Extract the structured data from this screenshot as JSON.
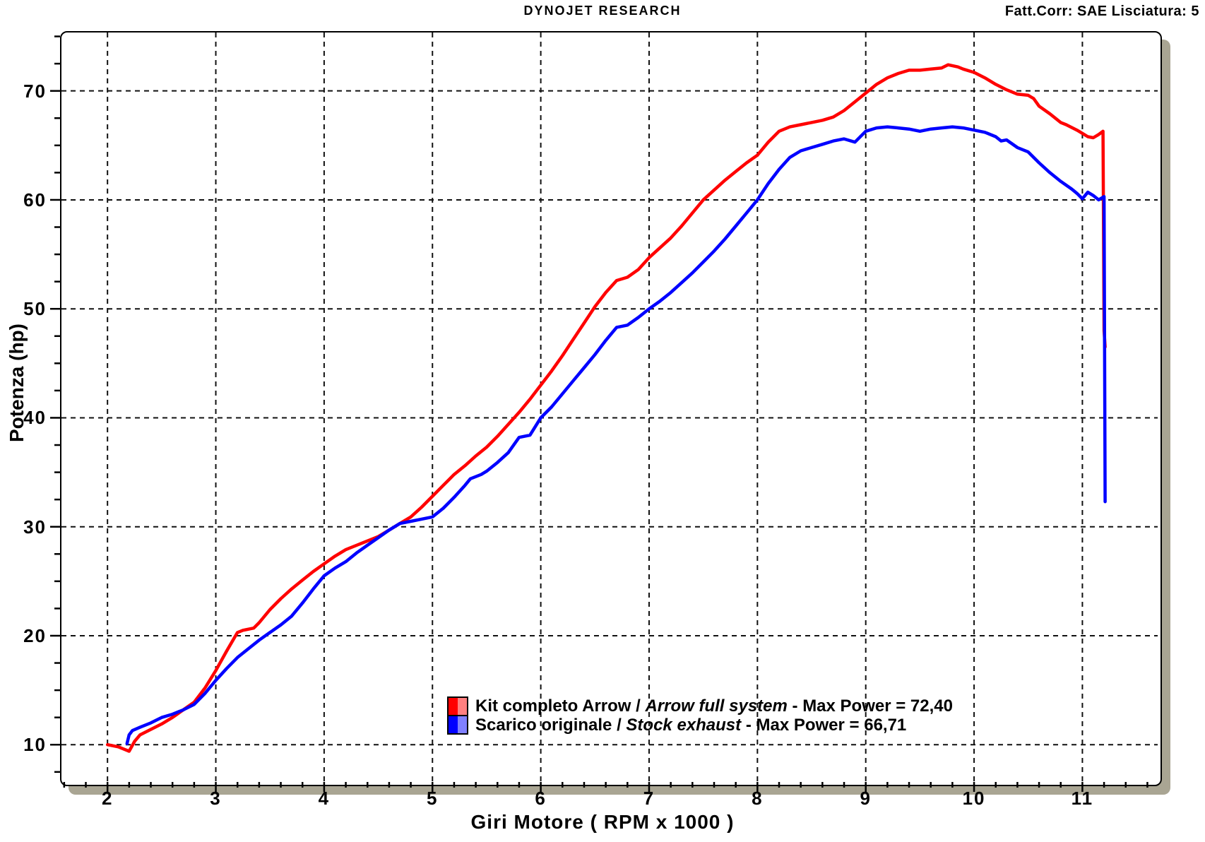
{
  "header": {
    "title": "DYNOJET RESEARCH",
    "correction": "Fatt.Corr: SAE  Lisciatura: 5"
  },
  "colors": {
    "arrow_curve": "#ff0000",
    "arrow_swatch_light": "#ff8080",
    "stock_curve": "#0000ff",
    "stock_swatch_light": "#8080ff",
    "grid": "#111111",
    "axis_shadow": "#a9a593",
    "text": "#000000",
    "background": "#ffffff"
  },
  "chart_data": {
    "type": "line",
    "title": "DYNOJET RESEARCH",
    "xlabel": "Giri Motore ( RPM x 1000 )",
    "ylabel": "Potenza (hp)",
    "grid": "dashed",
    "legend_position": "inside-bottom-center",
    "x_axis": {
      "min": 1.575,
      "max": 11.695,
      "major_ticks": [
        2,
        3,
        4,
        5,
        6,
        7,
        8,
        9,
        10,
        11
      ],
      "minor_step": 0.2
    },
    "y_axis": {
      "min": 6.58,
      "max": 75.36,
      "major_ticks": [
        10,
        20,
        30,
        40,
        50,
        60,
        70
      ],
      "minor_step": 2.5
    },
    "series": [
      {
        "name_it": "Kit completo Arrow",
        "name_en": "Arrow full system",
        "max_power": 72.4,
        "color": "#ff0000",
        "legend": {
          "name_it": "Kit completo Arrow",
          "sep": " / ",
          "name_en": "Arrow full system",
          "max": " - Max Power = 72,40"
        },
        "points": [
          [
            2.0,
            10.0
          ],
          [
            2.1,
            9.8
          ],
          [
            2.15,
            9.6
          ],
          [
            2.2,
            9.4
          ],
          [
            2.25,
            10.3
          ],
          [
            2.3,
            10.9
          ],
          [
            2.4,
            11.4
          ],
          [
            2.5,
            11.9
          ],
          [
            2.6,
            12.5
          ],
          [
            2.7,
            13.2
          ],
          [
            2.8,
            13.9
          ],
          [
            2.9,
            15.2
          ],
          [
            3.0,
            16.8
          ],
          [
            3.1,
            18.6
          ],
          [
            3.2,
            20.3
          ],
          [
            3.25,
            20.5
          ],
          [
            3.35,
            20.7
          ],
          [
            3.4,
            21.2
          ],
          [
            3.5,
            22.4
          ],
          [
            3.6,
            23.4
          ],
          [
            3.7,
            24.3
          ],
          [
            3.8,
            25.1
          ],
          [
            3.9,
            25.9
          ],
          [
            4.0,
            26.6
          ],
          [
            4.1,
            27.3
          ],
          [
            4.2,
            27.9
          ],
          [
            4.3,
            28.3
          ],
          [
            4.45,
            28.9
          ],
          [
            4.5,
            29.1
          ],
          [
            4.6,
            29.7
          ],
          [
            4.7,
            30.3
          ],
          [
            4.8,
            30.9
          ],
          [
            4.9,
            31.8
          ],
          [
            5.0,
            32.8
          ],
          [
            5.1,
            33.8
          ],
          [
            5.2,
            34.8
          ],
          [
            5.3,
            35.6
          ],
          [
            5.4,
            36.5
          ],
          [
            5.5,
            37.3
          ],
          [
            5.6,
            38.3
          ],
          [
            5.7,
            39.4
          ],
          [
            5.8,
            40.5
          ],
          [
            5.9,
            41.7
          ],
          [
            6.0,
            43.0
          ],
          [
            6.1,
            44.3
          ],
          [
            6.2,
            45.7
          ],
          [
            6.3,
            47.2
          ],
          [
            6.4,
            48.7
          ],
          [
            6.5,
            50.2
          ],
          [
            6.6,
            51.5
          ],
          [
            6.7,
            52.6
          ],
          [
            6.8,
            52.9
          ],
          [
            6.9,
            53.6
          ],
          [
            7.0,
            54.7
          ],
          [
            7.1,
            55.6
          ],
          [
            7.2,
            56.5
          ],
          [
            7.3,
            57.6
          ],
          [
            7.4,
            58.8
          ],
          [
            7.5,
            60.0
          ],
          [
            7.6,
            60.9
          ],
          [
            7.7,
            61.8
          ],
          [
            7.8,
            62.6
          ],
          [
            7.9,
            63.4
          ],
          [
            8.0,
            64.1
          ],
          [
            8.1,
            65.3
          ],
          [
            8.2,
            66.3
          ],
          [
            8.3,
            66.7
          ],
          [
            8.4,
            66.9
          ],
          [
            8.5,
            67.1
          ],
          [
            8.6,
            67.3
          ],
          [
            8.7,
            67.6
          ],
          [
            8.8,
            68.2
          ],
          [
            8.9,
            69.0
          ],
          [
            9.0,
            69.8
          ],
          [
            9.1,
            70.6
          ],
          [
            9.2,
            71.2
          ],
          [
            9.3,
            71.6
          ],
          [
            9.4,
            71.9
          ],
          [
            9.5,
            71.9
          ],
          [
            9.6,
            72.0
          ],
          [
            9.7,
            72.1
          ],
          [
            9.76,
            72.4
          ],
          [
            9.85,
            72.2
          ],
          [
            9.9,
            72.0
          ],
          [
            10.0,
            71.7
          ],
          [
            10.1,
            71.2
          ],
          [
            10.2,
            70.6
          ],
          [
            10.3,
            70.1
          ],
          [
            10.4,
            69.7
          ],
          [
            10.5,
            69.6
          ],
          [
            10.55,
            69.3
          ],
          [
            10.6,
            68.6
          ],
          [
            10.7,
            67.9
          ],
          [
            10.8,
            67.1
          ],
          [
            10.85,
            66.9
          ],
          [
            10.95,
            66.4
          ],
          [
            11.0,
            66.1
          ],
          [
            11.05,
            65.8
          ],
          [
            11.1,
            65.7
          ],
          [
            11.15,
            66.0
          ],
          [
            11.19,
            66.3
          ],
          [
            11.2,
            48.0
          ],
          [
            11.21,
            46.5
          ]
        ]
      },
      {
        "name_it": "Scarico originale",
        "name_en": "Stock exhaust",
        "max_power": 66.71,
        "color": "#0000ff",
        "legend": {
          "name_it": "Scarico originale",
          "sep": " / ",
          "name_en": "Stock exhaust",
          "max": " - Max Power = 66,71"
        },
        "points": [
          [
            2.18,
            10.1
          ],
          [
            2.2,
            10.9
          ],
          [
            2.23,
            11.3
          ],
          [
            2.3,
            11.6
          ],
          [
            2.4,
            12.0
          ],
          [
            2.5,
            12.5
          ],
          [
            2.6,
            12.8
          ],
          [
            2.7,
            13.2
          ],
          [
            2.8,
            13.7
          ],
          [
            2.9,
            14.7
          ],
          [
            3.0,
            15.9
          ],
          [
            3.1,
            17.0
          ],
          [
            3.2,
            18.0
          ],
          [
            3.3,
            18.8
          ],
          [
            3.4,
            19.6
          ],
          [
            3.5,
            20.3
          ],
          [
            3.6,
            21.0
          ],
          [
            3.7,
            21.8
          ],
          [
            3.8,
            23.0
          ],
          [
            3.9,
            24.3
          ],
          [
            4.0,
            25.5
          ],
          [
            4.1,
            26.2
          ],
          [
            4.2,
            26.8
          ],
          [
            4.3,
            27.6
          ],
          [
            4.4,
            28.3
          ],
          [
            4.5,
            29.0
          ],
          [
            4.6,
            29.7
          ],
          [
            4.7,
            30.3
          ],
          [
            4.8,
            30.5
          ],
          [
            4.9,
            30.7
          ],
          [
            5.0,
            30.9
          ],
          [
            5.1,
            31.7
          ],
          [
            5.2,
            32.7
          ],
          [
            5.3,
            33.8
          ],
          [
            5.35,
            34.4
          ],
          [
            5.45,
            34.8
          ],
          [
            5.5,
            35.1
          ],
          [
            5.6,
            35.9
          ],
          [
            5.7,
            36.8
          ],
          [
            5.8,
            38.2
          ],
          [
            5.9,
            38.4
          ],
          [
            6.0,
            40.0
          ],
          [
            6.1,
            41.0
          ],
          [
            6.2,
            42.2
          ],
          [
            6.3,
            43.4
          ],
          [
            6.4,
            44.6
          ],
          [
            6.5,
            45.8
          ],
          [
            6.6,
            47.1
          ],
          [
            6.7,
            48.3
          ],
          [
            6.8,
            48.5
          ],
          [
            6.9,
            49.2
          ],
          [
            7.0,
            50.0
          ],
          [
            7.1,
            50.7
          ],
          [
            7.2,
            51.5
          ],
          [
            7.3,
            52.4
          ],
          [
            7.4,
            53.3
          ],
          [
            7.5,
            54.3
          ],
          [
            7.6,
            55.3
          ],
          [
            7.7,
            56.4
          ],
          [
            7.8,
            57.6
          ],
          [
            7.9,
            58.8
          ],
          [
            8.0,
            60.0
          ],
          [
            8.1,
            61.5
          ],
          [
            8.2,
            62.8
          ],
          [
            8.3,
            63.9
          ],
          [
            8.4,
            64.5
          ],
          [
            8.5,
            64.8
          ],
          [
            8.6,
            65.1
          ],
          [
            8.7,
            65.4
          ],
          [
            8.8,
            65.6
          ],
          [
            8.9,
            65.3
          ],
          [
            9.0,
            66.3
          ],
          [
            9.1,
            66.6
          ],
          [
            9.2,
            66.7
          ],
          [
            9.3,
            66.6
          ],
          [
            9.4,
            66.5
          ],
          [
            9.5,
            66.3
          ],
          [
            9.6,
            66.5
          ],
          [
            9.7,
            66.6
          ],
          [
            9.8,
            66.7
          ],
          [
            9.9,
            66.6
          ],
          [
            10.0,
            66.4
          ],
          [
            10.1,
            66.2
          ],
          [
            10.2,
            65.8
          ],
          [
            10.25,
            65.4
          ],
          [
            10.3,
            65.5
          ],
          [
            10.4,
            64.8
          ],
          [
            10.5,
            64.4
          ],
          [
            10.6,
            63.4
          ],
          [
            10.7,
            62.5
          ],
          [
            10.8,
            61.7
          ],
          [
            10.9,
            61.0
          ],
          [
            10.95,
            60.6
          ],
          [
            11.0,
            60.1
          ],
          [
            11.05,
            60.7
          ],
          [
            11.1,
            60.4
          ],
          [
            11.15,
            60.0
          ],
          [
            11.2,
            60.3
          ],
          [
            11.21,
            32.3
          ]
        ]
      }
    ]
  }
}
